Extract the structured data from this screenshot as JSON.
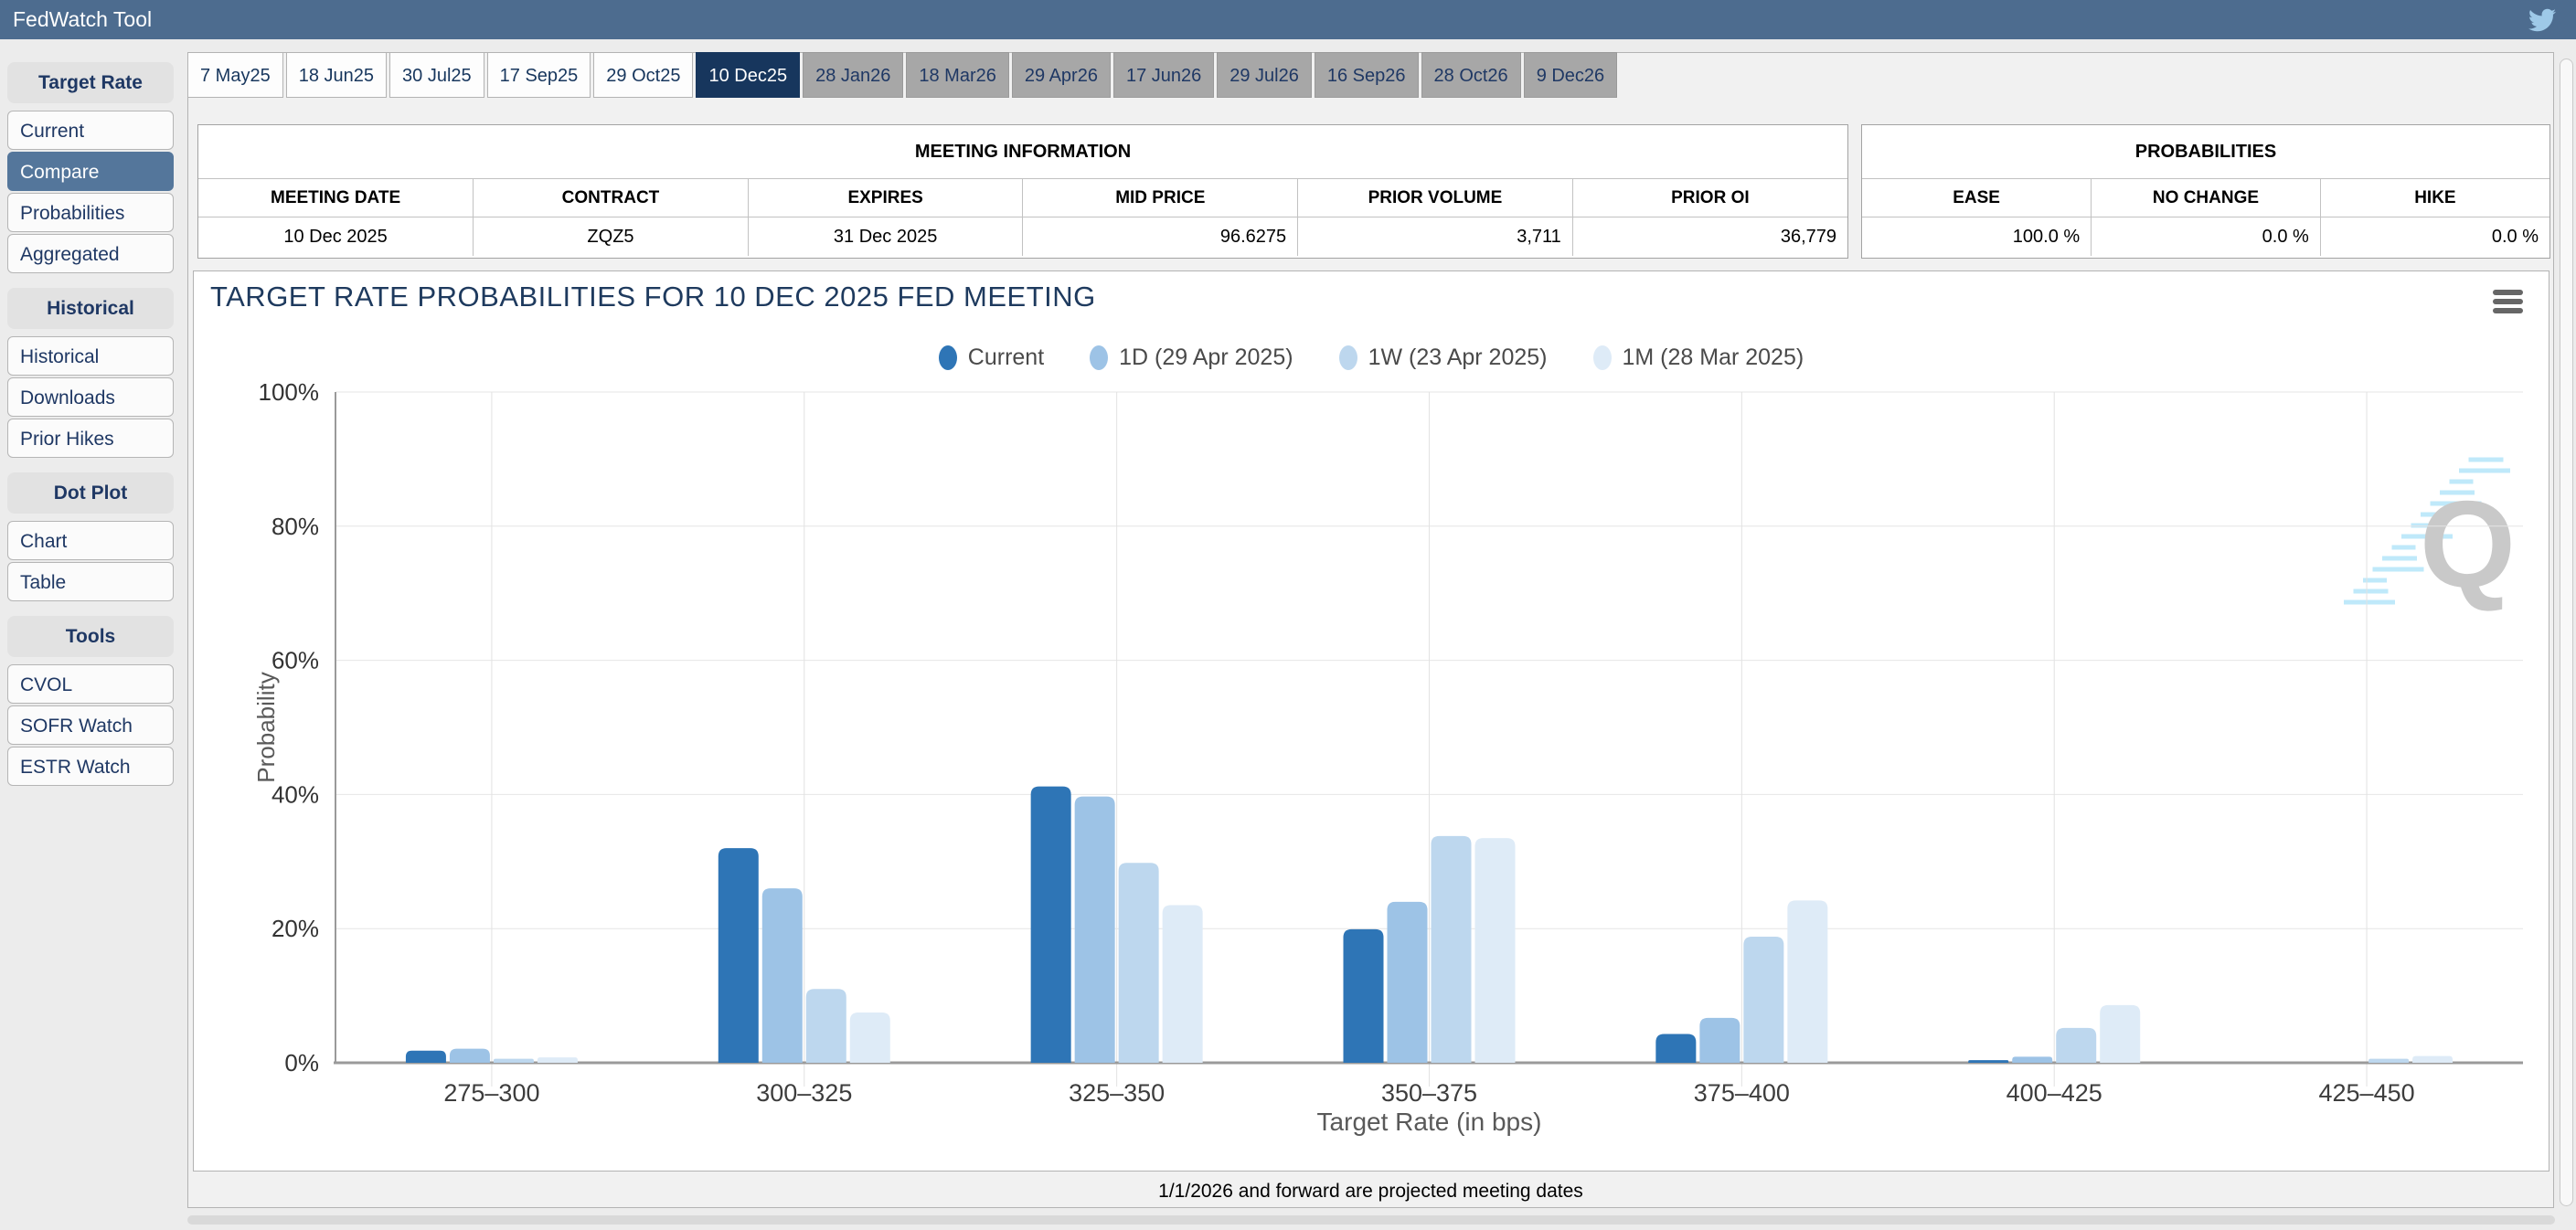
{
  "header": {
    "title": "FedWatch Tool"
  },
  "sidebar": {
    "sections": [
      {
        "label": "Target Rate",
        "items": [
          {
            "label": "Current",
            "selected": false
          },
          {
            "label": "Compare",
            "selected": true
          },
          {
            "label": "Probabilities",
            "selected": false
          },
          {
            "label": "Aggregated",
            "selected": false
          }
        ]
      },
      {
        "label": "Historical",
        "items": [
          {
            "label": "Historical",
            "selected": false
          },
          {
            "label": "Downloads",
            "selected": false
          },
          {
            "label": "Prior Hikes",
            "selected": false
          }
        ]
      },
      {
        "label": "Dot Plot",
        "items": [
          {
            "label": "Chart",
            "selected": false
          },
          {
            "label": "Table",
            "selected": false
          }
        ]
      },
      {
        "label": "Tools",
        "items": [
          {
            "label": "CVOL",
            "selected": false
          },
          {
            "label": "SOFR Watch",
            "selected": false
          },
          {
            "label": "ESTR Watch",
            "selected": false
          }
        ]
      }
    ]
  },
  "tabs": [
    {
      "label": "7 May25",
      "state": "normal"
    },
    {
      "label": "18 Jun25",
      "state": "normal"
    },
    {
      "label": "30 Jul25",
      "state": "normal"
    },
    {
      "label": "17 Sep25",
      "state": "normal"
    },
    {
      "label": "29 Oct25",
      "state": "normal"
    },
    {
      "label": "10 Dec25",
      "state": "selected"
    },
    {
      "label": "28 Jan26",
      "state": "future"
    },
    {
      "label": "18 Mar26",
      "state": "future"
    },
    {
      "label": "29 Apr26",
      "state": "future"
    },
    {
      "label": "17 Jun26",
      "state": "future"
    },
    {
      "label": "29 Jul26",
      "state": "future"
    },
    {
      "label": "16 Sep26",
      "state": "future"
    },
    {
      "label": "28 Oct26",
      "state": "future"
    },
    {
      "label": "9 Dec26",
      "state": "future"
    }
  ],
  "meeting_info": {
    "title": "MEETING INFORMATION",
    "columns": [
      "MEETING DATE",
      "CONTRACT",
      "EXPIRES",
      "MID PRICE",
      "PRIOR VOLUME",
      "PRIOR OI"
    ],
    "row": [
      "10 Dec 2025",
      "ZQZ5",
      "31 Dec 2025",
      "96.6275",
      "3,711",
      "36,779"
    ]
  },
  "probabilities": {
    "title": "PROBABILITIES",
    "columns": [
      "EASE",
      "NO CHANGE",
      "HIKE"
    ],
    "row": [
      "100.0 %",
      "0.0 %",
      "0.0 %"
    ]
  },
  "chart_data": {
    "type": "bar",
    "title": "TARGET RATE PROBABILITIES FOR 10 DEC 2025 FED MEETING",
    "categories": [
      "275–300",
      "300–325",
      "325–350",
      "350–375",
      "375–400",
      "400–425",
      "425–450"
    ],
    "series": [
      {
        "name": "Current",
        "color": "#2E75B6",
        "values": [
          1.8,
          32.0,
          41.2,
          19.9,
          4.3,
          0.4,
          0.0
        ]
      },
      {
        "name": "1D (29 Apr 2025)",
        "color": "#9DC3E6",
        "values": [
          2.1,
          26.0,
          39.7,
          24.0,
          6.7,
          0.9,
          0.0
        ]
      },
      {
        "name": "1W (23 Apr 2025)",
        "color": "#BDD7EE",
        "values": [
          0.6,
          11.0,
          29.8,
          33.8,
          18.8,
          5.2,
          0.6
        ]
      },
      {
        "name": "1M (28 Mar 2025)",
        "color": "#DEEBF7",
        "values": [
          0.8,
          7.5,
          23.5,
          33.5,
          24.2,
          8.6,
          1.0
        ]
      }
    ],
    "xlabel": "Target Rate (in bps)",
    "ylabel": "Probability",
    "ylim": [
      0,
      100
    ],
    "yticks": [
      0,
      20,
      40,
      60,
      80,
      100
    ],
    "grid": true,
    "legend_position": "top"
  },
  "footer": {
    "note": "1/1/2026 and forward are projected meeting dates"
  },
  "icons": {
    "twitter_icon": "twitter bird",
    "chart_menu_icon": "hamburger menu",
    "watermark_text": "Q"
  },
  "colors": {
    "header_bar": "#4d6c8f",
    "tab_selected": "#17365d",
    "sidebar_selected": "#54769b",
    "title_navy": "#1e3a5e"
  }
}
